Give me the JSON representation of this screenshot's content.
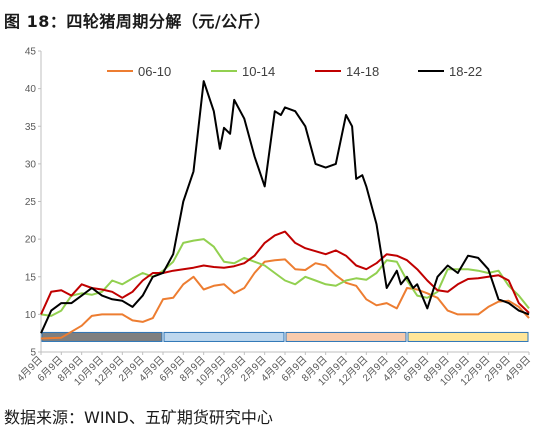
{
  "title": "图 18：四轮猪周期分解（元/公斤）",
  "source": "数据来源：WIND、五矿期货研究中心",
  "chart_data": {
    "type": "line",
    "ylim": [
      5,
      45
    ],
    "yticks": [
      5,
      10,
      15,
      20,
      25,
      30,
      35,
      40,
      45
    ],
    "xticks": [
      "4月9日",
      "6月9日",
      "8月9日",
      "10月9日",
      "12月9日",
      "2月9日",
      "4月9日",
      "6月9日",
      "8月9日",
      "10月9日",
      "12月9日",
      "2月9日",
      "4月9日",
      "6月9日",
      "8月9日",
      "10月9日",
      "12月9日",
      "2月9日",
      "4月9日",
      "6月9日",
      "8月9日",
      "10月9日",
      "12月9日",
      "2月9日",
      "4月9日"
    ],
    "legend_position": "top",
    "grid": false,
    "phase_bars": [
      {
        "from": 0,
        "to": 6,
        "color": "#7f7f7f"
      },
      {
        "from": 6,
        "to": 12,
        "color": "#bdd7ee"
      },
      {
        "from": 12,
        "to": 18,
        "color": "#f8cbad"
      },
      {
        "from": 18,
        "to": 24,
        "color": "#ffe699"
      }
    ],
    "series": [
      {
        "name": "06-10",
        "color": "#ed7d31",
        "x": [
          0,
          1,
          2,
          2.5,
          3,
          3.5,
          4,
          4.5,
          5,
          5.5,
          6,
          6.5,
          7,
          7.5,
          8,
          8.5,
          9,
          9.5,
          10,
          10.5,
          11,
          11.5,
          12,
          12.5,
          13,
          13.5,
          14,
          14.5,
          15,
          15.5,
          16,
          16.5,
          17,
          17.5,
          18,
          18.5,
          19,
          19.5,
          20,
          20.5,
          21,
          21.5,
          22,
          22.5,
          23,
          23.5,
          24
        ],
        "y": [
          6.8,
          6.9,
          8.5,
          9.8,
          10,
          10,
          10,
          9.2,
          9,
          9.5,
          12,
          12.2,
          14,
          15,
          13.3,
          13.8,
          14,
          12.8,
          13.5,
          15.5,
          17,
          17.2,
          17.3,
          16,
          15.9,
          16.8,
          16.5,
          15.2,
          14.2,
          13.8,
          12,
          11.2,
          11.5,
          10.8,
          13.5,
          13.3,
          12.8,
          12.2,
          10.5,
          10,
          10,
          10,
          11,
          11.7,
          11.8,
          11,
          9.5
        ]
      },
      {
        "name": "10-14",
        "color": "#92d050",
        "x": [
          0,
          0.5,
          1,
          1.5,
          2,
          2.5,
          3,
          3.5,
          4,
          4.5,
          5,
          5.5,
          6,
          6.5,
          7,
          7.5,
          8,
          8.5,
          9,
          9.5,
          10,
          10.5,
          11,
          11.5,
          12,
          12.5,
          13,
          13.5,
          14,
          14.5,
          15,
          15.5,
          16,
          16.5,
          17,
          17.5,
          18,
          18.5,
          19,
          19.5,
          20,
          20.5,
          21,
          21.5,
          22,
          22.5,
          23,
          23.5,
          24
        ],
        "y": [
          10,
          9.8,
          10.5,
          12.5,
          12.8,
          12.6,
          13,
          14.5,
          14,
          14.8,
          15.5,
          15,
          15.8,
          17,
          19.5,
          19.8,
          20,
          19,
          17,
          16.8,
          17.5,
          17,
          16.5,
          15.5,
          14.5,
          14,
          15,
          14.5,
          14,
          13.8,
          14.5,
          14.8,
          14.6,
          15.5,
          17.2,
          17,
          14.5,
          12.5,
          12.2,
          13,
          16,
          16,
          16,
          15.8,
          15.5,
          15.8,
          13.8,
          12.5,
          10.8
        ]
      },
      {
        "name": "14-18",
        "color": "#c00000",
        "x": [
          0,
          0.5,
          1,
          1.5,
          2,
          2.5,
          3,
          3.5,
          4,
          4.5,
          5,
          5.5,
          6,
          6.5,
          7,
          7.5,
          8,
          8.5,
          9,
          9.5,
          10,
          10.5,
          11,
          11.5,
          12,
          12.5,
          13,
          13.5,
          14,
          14.5,
          15,
          15.5,
          16,
          16.5,
          17,
          17.5,
          18,
          18.5,
          19,
          19.5,
          20,
          20.5,
          21,
          21.5,
          22,
          22.5,
          23,
          23.5,
          24
        ],
        "y": [
          10,
          13,
          13.2,
          12.5,
          14,
          13.5,
          13.3,
          13,
          12.2,
          13,
          14.5,
          15.5,
          15.5,
          15.8,
          16,
          16.2,
          16.5,
          16.3,
          16.2,
          16.4,
          16.8,
          17.8,
          19.5,
          20.5,
          21,
          19.5,
          18.8,
          18.4,
          18,
          18.5,
          17.8,
          16.5,
          16,
          16.8,
          18,
          17.8,
          17.2,
          16,
          14.5,
          13.2,
          13,
          14,
          14.7,
          14.8,
          15,
          15.2,
          14.5,
          11.5,
          10.2
        ]
      },
      {
        "name": "18-22",
        "color": "#000000",
        "x": [
          0,
          0.5,
          1,
          1.5,
          2,
          2.5,
          3,
          3.5,
          4,
          4.5,
          5,
          5.5,
          6,
          6.5,
          7,
          7.5,
          8,
          8.5,
          8.8,
          9,
          9.3,
          9.5,
          10,
          10.5,
          11,
          11.5,
          11.8,
          12,
          12.5,
          13,
          13.5,
          14,
          14.5,
          15,
          15.3,
          15.5,
          15.8,
          16,
          16.5,
          17,
          17.5,
          17.7,
          18,
          18.3,
          18.5,
          19,
          19.5,
          20,
          20.5,
          21,
          21.5,
          22,
          22.5,
          23,
          23.5,
          24
        ],
        "y": [
          7.5,
          10.5,
          11.5,
          11.5,
          12.5,
          13.5,
          12.5,
          12,
          11.8,
          11,
          12.5,
          15,
          15.5,
          18,
          25,
          29,
          41,
          37,
          32,
          34.8,
          34,
          38.5,
          36,
          31,
          27,
          37,
          36.5,
          37.5,
          37,
          35,
          30,
          29.5,
          30,
          36.5,
          35,
          28,
          28.5,
          27,
          22,
          13.5,
          15.8,
          14,
          15,
          13.5,
          14,
          10.8,
          15,
          16.5,
          15.5,
          17.8,
          17.5,
          16,
          12,
          11.5,
          10.5,
          10
        ]
      }
    ]
  }
}
